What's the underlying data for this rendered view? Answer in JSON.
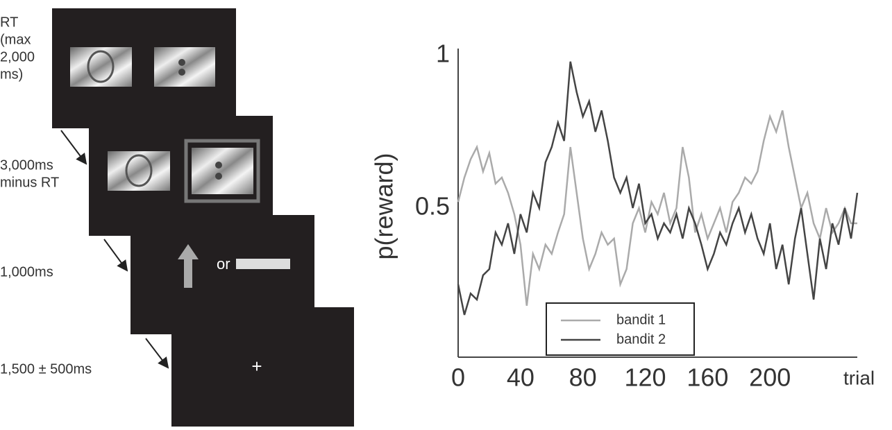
{
  "diagram": {
    "steps": [
      {
        "label_lines": [
          "RT",
          "(max",
          "2,000",
          "ms)"
        ]
      },
      {
        "label_lines": [
          "3,000ms",
          "minus RT"
        ]
      },
      {
        "label_lines": [
          "1,000ms"
        ],
        "screen_text": "or"
      },
      {
        "label_lines": [
          "1,500 ± 500ms"
        ],
        "screen_text": "+"
      }
    ]
  },
  "chart_data": {
    "type": "line",
    "y_label": "p(reward)",
    "x_label": "trial",
    "x": [
      0,
      4,
      8,
      12,
      16,
      20,
      24,
      28,
      32,
      36,
      40,
      44,
      48,
      52,
      56,
      60,
      64,
      68,
      72,
      76,
      80,
      84,
      88,
      92,
      96,
      100,
      104,
      108,
      112,
      116,
      120,
      124,
      128,
      132,
      136,
      140,
      144,
      148,
      152,
      156,
      160,
      164,
      168,
      172,
      176,
      180,
      184,
      188,
      192,
      196,
      200,
      204,
      208,
      212,
      216,
      220,
      224,
      228,
      232,
      236,
      240,
      244,
      248,
      252,
      256
    ],
    "series": [
      {
        "name": "bandit 1",
        "color": "#aaaaaa",
        "values": [
          0.52,
          0.6,
          0.66,
          0.7,
          0.62,
          0.68,
          0.58,
          0.6,
          0.55,
          0.48,
          0.38,
          0.18,
          0.35,
          0.3,
          0.38,
          0.35,
          0.42,
          0.48,
          0.7,
          0.55,
          0.4,
          0.3,
          0.35,
          0.42,
          0.38,
          0.4,
          0.25,
          0.3,
          0.45,
          0.5,
          0.42,
          0.52,
          0.48,
          0.55,
          0.45,
          0.5,
          0.7,
          0.6,
          0.42,
          0.48,
          0.4,
          0.45,
          0.5,
          0.42,
          0.52,
          0.55,
          0.6,
          0.58,
          0.62,
          0.72,
          0.8,
          0.75,
          0.82,
          0.7,
          0.6,
          0.5,
          0.55,
          0.45,
          0.4,
          0.5,
          0.42,
          0.45,
          0.5,
          0.45,
          0.45
        ]
      },
      {
        "name": "bandit 2",
        "color": "#444444",
        "values": [
          0.25,
          0.15,
          0.22,
          0.2,
          0.28,
          0.3,
          0.42,
          0.38,
          0.45,
          0.35,
          0.48,
          0.42,
          0.55,
          0.5,
          0.65,
          0.7,
          0.78,
          0.72,
          0.98,
          0.88,
          0.8,
          0.85,
          0.75,
          0.82,
          0.72,
          0.6,
          0.55,
          0.6,
          0.5,
          0.58,
          0.45,
          0.48,
          0.4,
          0.45,
          0.42,
          0.48,
          0.4,
          0.5,
          0.45,
          0.38,
          0.3,
          0.35,
          0.42,
          0.38,
          0.45,
          0.5,
          0.42,
          0.48,
          0.4,
          0.35,
          0.45,
          0.3,
          0.38,
          0.25,
          0.4,
          0.5,
          0.35,
          0.2,
          0.4,
          0.3,
          0.45,
          0.38,
          0.5,
          0.4,
          0.55
        ]
      }
    ],
    "xlim": [
      0,
      256
    ],
    "ylim": [
      0,
      1
    ],
    "xticks": [
      0,
      40,
      80,
      120,
      160,
      200
    ],
    "yticks": [
      0.5,
      1
    ],
    "grid": false
  }
}
